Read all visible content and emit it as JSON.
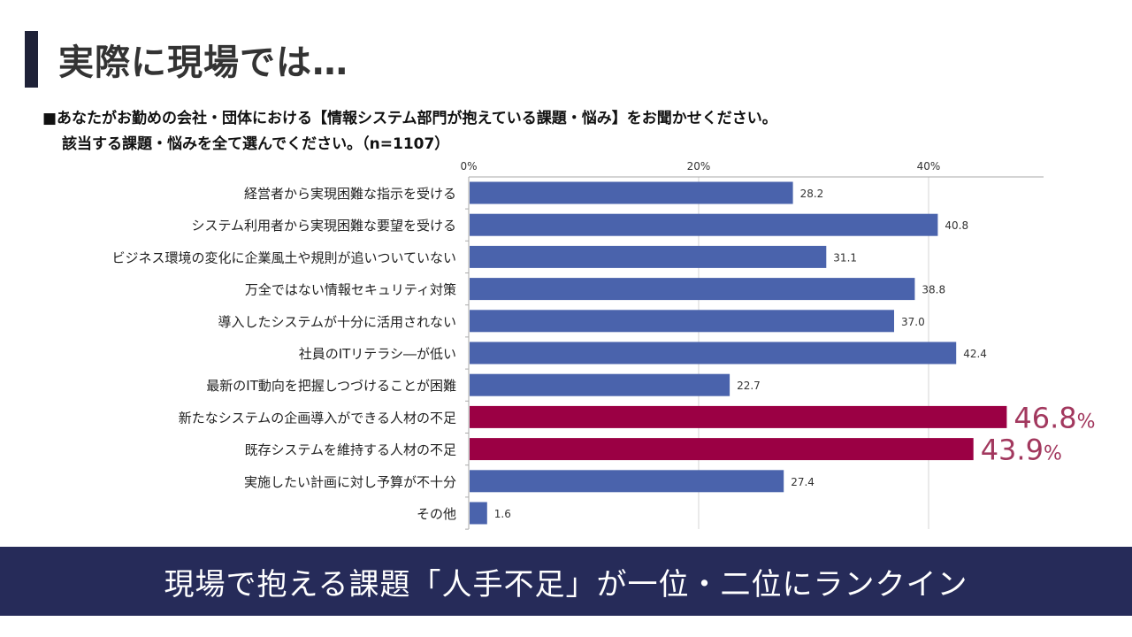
{
  "slide": {
    "title": "実際に現場では…",
    "question_line1": "■あなたがお勤めの会社・団体における【情報システム部門が抱えている課題・悩み】をお聞かせください。",
    "question_line2": "該当する課題・悩みを全て選んでください。（n=1107）",
    "banner": "現場で抱える課題「人手不足」が一位・二位にランクイン"
  },
  "colors": {
    "bar": "#4a63ac",
    "highlight_bar": "#9b0044",
    "highlight_label": "#a2385e",
    "banner_bg": "#262b59"
  },
  "chart_data": {
    "type": "bar",
    "orientation": "horizontal",
    "categories": [
      "経営者から実現困難な指示を受ける",
      "システム利用者から実現困難な要望を受ける",
      "ビジネス環境の変化に企業風土や規則が追いついていない",
      "万全ではない情報セキュリティ対策",
      "導入したシステムが十分に活用されない",
      "社員のITリテラシ―が低い",
      "最新のIT動向を把握しつづけることが困難",
      "新たなシステムの企画導入ができる人材の不足",
      "既存システムを維持する人材の不足",
      "実施したい計画に対し予算が不十分",
      "その他"
    ],
    "values": [
      28.2,
      40.8,
      31.1,
      38.8,
      37.0,
      42.4,
      22.7,
      46.8,
      43.9,
      27.4,
      1.6
    ],
    "value_labels": [
      "28.2",
      "40.8",
      "31.1",
      "38.8",
      "37.0",
      "42.4",
      "22.7",
      "46.8",
      "43.9",
      "27.4",
      "1.6"
    ],
    "highlighted": [
      false,
      false,
      false,
      false,
      false,
      false,
      false,
      true,
      true,
      false,
      false
    ],
    "highlight_suffix": "%",
    "xlim": [
      0,
      50
    ],
    "xticks": [
      0,
      20,
      40
    ],
    "xtick_labels": [
      "0%",
      "20%",
      "40%"
    ],
    "grid": true
  }
}
